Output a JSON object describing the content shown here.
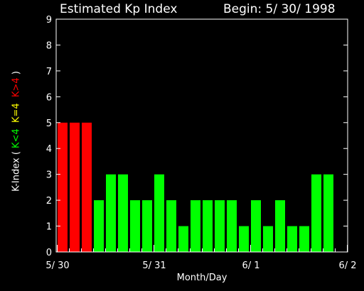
{
  "header": {
    "title": "Estimated Kp Index",
    "begin": "Begin: 5/ 30/ 1998"
  },
  "y_axis_label": {
    "prefix": "K-Index ( ",
    "green": "K<4",
    "yellow": "K=4",
    "red": "K>4",
    "suffix": " )"
  },
  "chart_data": {
    "type": "bar",
    "title": "Estimated Kp Index",
    "subtitle": "Begin: 5/ 30/ 1998",
    "xlabel": "Month/Day",
    "ylabel": "K-Index ( K<4  K=4  K>4 )",
    "ylim": [
      0,
      9
    ],
    "yticks": [
      "0",
      "1",
      "2",
      "3",
      "4",
      "5",
      "6",
      "7",
      "8",
      "9"
    ],
    "xticks": [
      "5/ 30",
      "5/ 31",
      "6/ 1",
      "6/ 2"
    ],
    "bars_per_day": 8,
    "values": [
      5,
      5,
      5,
      2,
      3,
      3,
      2,
      2,
      3,
      2,
      1,
      2,
      2,
      2,
      2,
      1,
      2,
      1,
      2,
      1,
      1,
      3,
      3
    ],
    "colors": {
      "low": "#00ff00",
      "equal": "#ffff00",
      "high": "#ff0000",
      "axes": "#ffffff",
      "background": "#000000"
    },
    "grid": false
  }
}
